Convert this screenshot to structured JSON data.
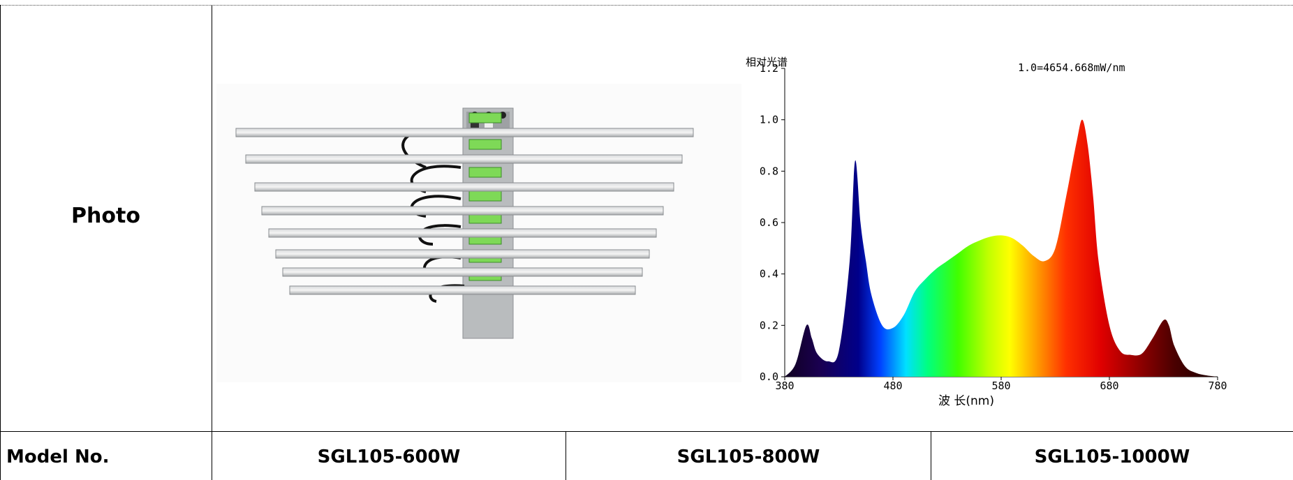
{
  "table": {
    "photo_label": "Photo",
    "model_label": "Model No.",
    "models": [
      "SGL105-600W",
      "SGL105-800W",
      "SGL105-1000W"
    ]
  },
  "product_photo": {
    "description_icon": "led-grow-light-bar-fixture"
  },
  "chart_data": {
    "type": "area",
    "title": "相对光谱",
    "annotation": "1.0=4654.668mW/nm",
    "xlabel": "波 长(nm)",
    "ylabel": "",
    "xlim": [
      380,
      780
    ],
    "ylim": [
      0,
      1.2
    ],
    "x_ticks": [
      "380",
      "480",
      "580",
      "680",
      "780"
    ],
    "y_ticks": [
      "0.0",
      "0.2",
      "0.4",
      "0.6",
      "0.8",
      "1.0",
      "1.2"
    ],
    "grid": false,
    "x": [
      380,
      390,
      400,
      405,
      410,
      420,
      430,
      440,
      445,
      450,
      455,
      460,
      470,
      480,
      490,
      500,
      510,
      520,
      530,
      540,
      550,
      560,
      570,
      580,
      590,
      600,
      610,
      620,
      630,
      640,
      650,
      655,
      660,
      665,
      670,
      680,
      690,
      700,
      710,
      720,
      730,
      735,
      740,
      750,
      760,
      770,
      780
    ],
    "values": [
      0.0,
      0.05,
      0.2,
      0.15,
      0.09,
      0.06,
      0.1,
      0.45,
      0.84,
      0.6,
      0.45,
      0.32,
      0.2,
      0.19,
      0.24,
      0.33,
      0.38,
      0.42,
      0.45,
      0.48,
      0.51,
      0.53,
      0.545,
      0.55,
      0.54,
      0.51,
      0.47,
      0.45,
      0.5,
      0.7,
      0.92,
      1.0,
      0.9,
      0.7,
      0.45,
      0.2,
      0.1,
      0.085,
      0.09,
      0.15,
      0.22,
      0.2,
      0.12,
      0.04,
      0.015,
      0.005,
      0.0
    ]
  }
}
